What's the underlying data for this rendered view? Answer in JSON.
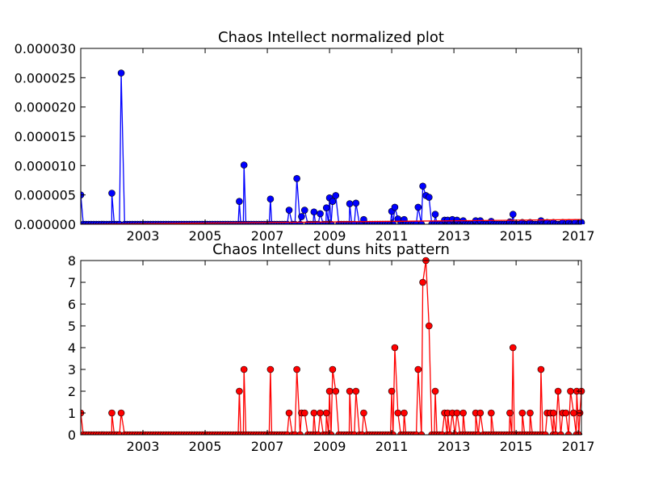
{
  "chart_data": [
    {
      "type": "line",
      "title": "Chaos Intellect normalized plot",
      "xlabel": "",
      "ylabel": "",
      "xlim": [
        2001.0,
        2017.1
      ],
      "ylim": [
        0,
        3e-05
      ],
      "x_tick_labels": [
        "2003",
        "2005",
        "2007",
        "2009",
        "2011",
        "2013",
        "2015",
        "2017"
      ],
      "y_tick_labels": [
        "0.000000",
        "0.000005",
        "0.000010",
        "0.000015",
        "0.000020",
        "0.000025",
        "0.000030"
      ],
      "series": [
        {
          "name": "normalized",
          "color": "#0000ff",
          "marker": "circle",
          "points": [
            [
              2001.0,
              5e-06
            ],
            [
              2002.0,
              5.3e-06
            ],
            [
              2002.3,
              2.58e-05
            ],
            [
              2006.1,
              3.9e-06
            ],
            [
              2006.25,
              1.01e-05
            ],
            [
              2007.1,
              4.3e-06
            ],
            [
              2007.7,
              2.4e-06
            ],
            [
              2007.95,
              7.8e-06
            ],
            [
              2008.1,
              1.3e-06
            ],
            [
              2008.2,
              2.4e-06
            ],
            [
              2008.5,
              2.1e-06
            ],
            [
              2008.7,
              1.8e-06
            ],
            [
              2008.9,
              2.8e-06
            ],
            [
              2009.0,
              4.5e-06
            ],
            [
              2009.1,
              3.9e-06
            ],
            [
              2009.2,
              4.9e-06
            ],
            [
              2009.65,
              3.5e-06
            ],
            [
              2009.85,
              3.6e-06
            ],
            [
              2010.1,
              8e-07
            ],
            [
              2011.0,
              2.2e-06
            ],
            [
              2011.1,
              2.9e-06
            ],
            [
              2011.2,
              9e-07
            ],
            [
              2011.4,
              8e-07
            ],
            [
              2011.85,
              2.9e-06
            ],
            [
              2012.0,
              6.5e-06
            ],
            [
              2012.1,
              4.9e-06
            ],
            [
              2012.2,
              4.6e-06
            ],
            [
              2012.4,
              1.7e-06
            ],
            [
              2012.7,
              7e-07
            ],
            [
              2012.8,
              7e-07
            ],
            [
              2012.95,
              8e-07
            ],
            [
              2013.1,
              7e-07
            ],
            [
              2013.3,
              6e-07
            ],
            [
              2013.7,
              6e-07
            ],
            [
              2013.85,
              6e-07
            ],
            [
              2014.2,
              5e-07
            ],
            [
              2014.8,
              4e-07
            ],
            [
              2014.9,
              1.7e-06
            ],
            [
              2015.2,
              3e-07
            ],
            [
              2015.45,
              3e-07
            ],
            [
              2015.8,
              6e-07
            ],
            [
              2016.0,
              3e-07
            ],
            [
              2016.2,
              3e-07
            ],
            [
              2016.5,
              3e-07
            ],
            [
              2016.7,
              3e-07
            ],
            [
              2016.9,
              3e-07
            ],
            [
              2017.1,
              3e-07
            ]
          ]
        },
        {
          "name": "trend",
          "color": "#ff0000",
          "marker": "none",
          "points": [
            [
              2001.0,
              0.0
            ],
            [
              2017.1,
              8e-07
            ]
          ]
        }
      ]
    },
    {
      "type": "line",
      "title": "Chaos Intellect duns hits pattern",
      "xlabel": "",
      "ylabel": "",
      "xlim": [
        2001.0,
        2017.1
      ],
      "ylim": [
        0,
        8
      ],
      "x_tick_labels": [
        "2003",
        "2005",
        "2007",
        "2009",
        "2011",
        "2013",
        "2015",
        "2017"
      ],
      "y_tick_labels": [
        "0",
        "1",
        "2",
        "3",
        "4",
        "5",
        "6",
        "7",
        "8"
      ],
      "series": [
        {
          "name": "hits",
          "color": "#ff0000",
          "marker": "circle",
          "points": [
            [
              2001.0,
              1
            ],
            [
              2002.0,
              1
            ],
            [
              2002.3,
              1
            ],
            [
              2006.1,
              2
            ],
            [
              2006.25,
              3
            ],
            [
              2007.1,
              3
            ],
            [
              2007.7,
              1
            ],
            [
              2007.95,
              3
            ],
            [
              2008.1,
              1
            ],
            [
              2008.2,
              1
            ],
            [
              2008.5,
              1
            ],
            [
              2008.7,
              1
            ],
            [
              2008.9,
              1
            ],
            [
              2009.0,
              2
            ],
            [
              2009.1,
              3
            ],
            [
              2009.2,
              2
            ],
            [
              2009.65,
              2
            ],
            [
              2009.85,
              2
            ],
            [
              2010.1,
              1
            ],
            [
              2011.0,
              2
            ],
            [
              2011.1,
              4
            ],
            [
              2011.2,
              1
            ],
            [
              2011.4,
              1
            ],
            [
              2011.85,
              3
            ],
            [
              2012.0,
              7
            ],
            [
              2012.1,
              8
            ],
            [
              2012.2,
              5
            ],
            [
              2012.4,
              2
            ],
            [
              2012.7,
              1
            ],
            [
              2012.8,
              1
            ],
            [
              2012.95,
              1
            ],
            [
              2013.1,
              1
            ],
            [
              2013.3,
              1
            ],
            [
              2013.7,
              1
            ],
            [
              2013.85,
              1
            ],
            [
              2014.2,
              1
            ],
            [
              2014.8,
              1
            ],
            [
              2014.9,
              4
            ],
            [
              2015.2,
              1
            ],
            [
              2015.45,
              1
            ],
            [
              2015.8,
              3
            ],
            [
              2016.0,
              1
            ],
            [
              2016.1,
              1
            ],
            [
              2016.2,
              1
            ],
            [
              2016.35,
              2
            ],
            [
              2016.5,
              1
            ],
            [
              2016.6,
              1
            ],
            [
              2016.75,
              2
            ],
            [
              2016.85,
              1
            ],
            [
              2016.95,
              2
            ],
            [
              2017.05,
              1
            ],
            [
              2017.1,
              2
            ]
          ]
        }
      ]
    }
  ]
}
